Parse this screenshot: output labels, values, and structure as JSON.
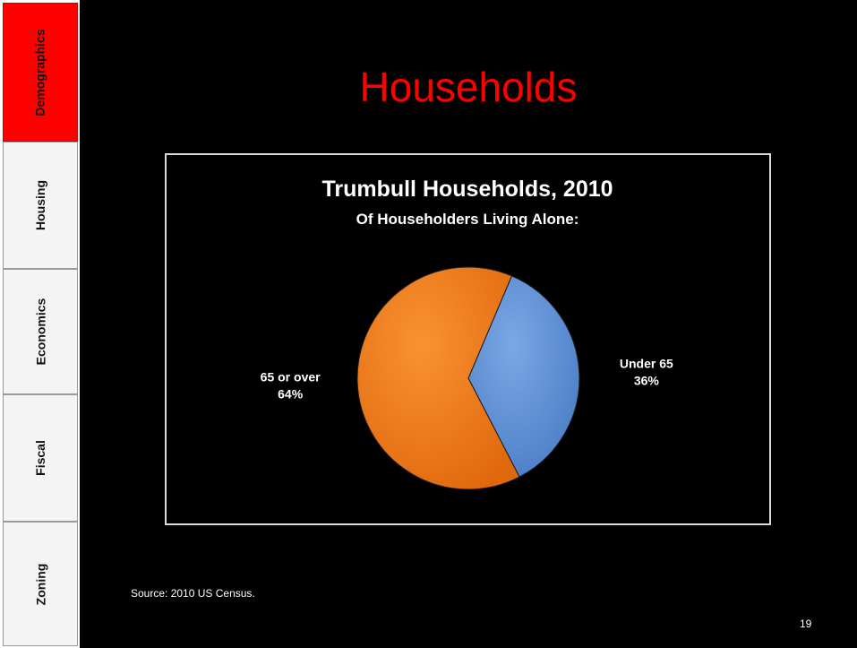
{
  "sidebar": {
    "tabs": [
      {
        "label": "Demographics",
        "active": true
      },
      {
        "label": "Housing",
        "active": false
      },
      {
        "label": "Economics",
        "active": false
      },
      {
        "label": "Fiscal",
        "active": false
      },
      {
        "label": "Zoning",
        "active": false
      }
    ]
  },
  "slide": {
    "title": "Households",
    "source": "Source:  2010 US Census.",
    "page_number": "19"
  },
  "colors": {
    "background": "#000000",
    "title": "#ff0000",
    "active_tab": "#ff0000",
    "tab": "#f4f4f4"
  },
  "chart_data": {
    "type": "pie",
    "title": "Trumbull Households, 2010",
    "subtitle": "Of Householders  Living Alone:",
    "slices": [
      {
        "label": "Under 65",
        "value": 36,
        "value_label": "36%",
        "color": "#5b8fd6"
      },
      {
        "label": "65 or over",
        "value": 64,
        "value_label": "64%",
        "color": "#f27a17"
      }
    ]
  }
}
